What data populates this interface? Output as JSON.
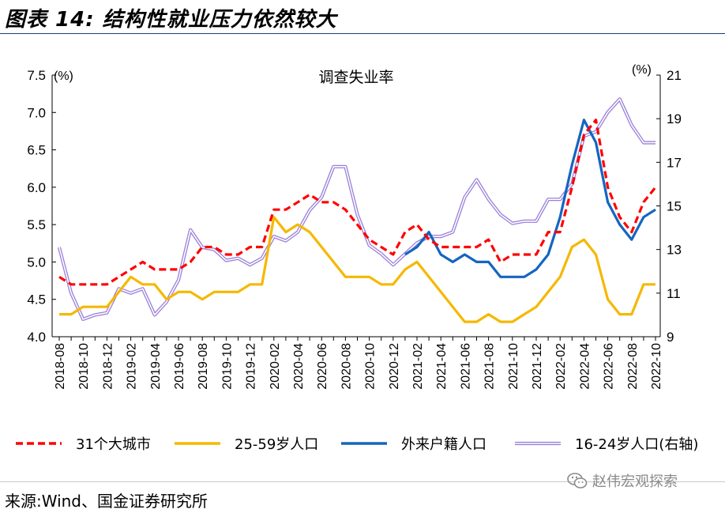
{
  "figure_title": "图表 14:  结构性就业压力依然较大",
  "source": "来源:Wind、国金证券研究所",
  "watermark": "赵伟宏观探索",
  "chart_data": {
    "type": "line",
    "title": "调查失业率",
    "left_axis_unit": "(%)",
    "right_axis_unit": "(%)",
    "ylim": [
      4.0,
      7.5
    ],
    "y_ticks": [
      "4.0",
      "4.5",
      "5.0",
      "5.5",
      "6.0",
      "6.5",
      "7.0",
      "7.5"
    ],
    "y2lim": [
      9,
      21
    ],
    "y2_ticks": [
      "9",
      "11",
      "13",
      "15",
      "17",
      "19",
      "21"
    ],
    "x": [
      "2018-08",
      "2018-09",
      "2018-10",
      "2018-11",
      "2018-12",
      "2019-01",
      "2019-02",
      "2019-03",
      "2019-04",
      "2019-05",
      "2019-06",
      "2019-07",
      "2019-08",
      "2019-09",
      "2019-10",
      "2019-11",
      "2019-12",
      "2020-01",
      "2020-02",
      "2020-03",
      "2020-04",
      "2020-05",
      "2020-06",
      "2020-07",
      "2020-08",
      "2020-09",
      "2020-10",
      "2020-11",
      "2020-12",
      "2021-01",
      "2021-02",
      "2021-03",
      "2021-04",
      "2021-05",
      "2021-06",
      "2021-07",
      "2021-08",
      "2021-09",
      "2021-10",
      "2021-11",
      "2021-12",
      "2022-01",
      "2022-02",
      "2022-03",
      "2022-04",
      "2022-05",
      "2022-06",
      "2022-07",
      "2022-08",
      "2022-09",
      "2022-10"
    ],
    "x_tick_labels": [
      "2018-08",
      "2018-10",
      "2018-12",
      "2019-02",
      "2019-04",
      "2019-06",
      "2019-08",
      "2019-10",
      "2019-12",
      "2020-02",
      "2020-04",
      "2020-06",
      "2020-08",
      "2020-10",
      "2020-12",
      "2021-02",
      "2021-04",
      "2021-06",
      "2021-08",
      "2021-10",
      "2021-12",
      "2022-02",
      "2022-04",
      "2022-06",
      "2022-08",
      "2022-10"
    ],
    "grid": false,
    "legend_position": "bottom",
    "series": [
      {
        "name": "31个大城市",
        "axis": "left",
        "color": "#ff0000",
        "dash": true,
        "values": [
          4.8,
          4.7,
          4.7,
          4.7,
          4.7,
          4.8,
          4.9,
          5.0,
          4.9,
          4.9,
          4.9,
          5.0,
          5.2,
          5.2,
          5.1,
          5.1,
          5.2,
          5.2,
          5.7,
          5.7,
          5.8,
          5.9,
          5.8,
          5.8,
          5.7,
          5.5,
          5.3,
          5.2,
          5.1,
          5.4,
          5.5,
          5.3,
          5.2,
          5.2,
          5.2,
          5.2,
          5.3,
          5.0,
          5.1,
          5.1,
          5.1,
          5.4,
          5.4,
          6.0,
          6.7,
          6.9,
          6.0,
          5.6,
          5.4,
          5.8,
          6.0
        ]
      },
      {
        "name": "25-59岁人口",
        "axis": "left",
        "color": "#f5b800",
        "dash": false,
        "values": [
          4.3,
          4.3,
          4.4,
          4.4,
          4.4,
          4.6,
          4.8,
          4.7,
          4.7,
          4.5,
          4.6,
          4.6,
          4.5,
          4.6,
          4.6,
          4.6,
          4.7,
          4.7,
          5.6,
          5.4,
          5.5,
          5.4,
          5.2,
          5.0,
          4.8,
          4.8,
          4.8,
          4.7,
          4.7,
          4.9,
          5.0,
          4.8,
          4.6,
          4.4,
          4.2,
          4.2,
          4.3,
          4.2,
          4.2,
          4.3,
          4.4,
          4.6,
          4.8,
          5.2,
          5.3,
          5.1,
          4.5,
          4.3,
          4.3,
          4.7,
          4.7
        ]
      },
      {
        "name": "外来户籍人口",
        "axis": "left",
        "color": "#1565c0",
        "dash": false,
        "values": [
          null,
          null,
          null,
          null,
          null,
          null,
          null,
          null,
          null,
          null,
          null,
          null,
          null,
          null,
          null,
          null,
          null,
          null,
          null,
          null,
          null,
          null,
          null,
          null,
          null,
          null,
          null,
          null,
          null,
          5.1,
          5.2,
          5.4,
          5.1,
          5.0,
          5.1,
          5.0,
          5.0,
          4.8,
          4.8,
          4.8,
          4.9,
          5.1,
          5.6,
          6.3,
          6.9,
          6.6,
          5.8,
          5.5,
          5.3,
          5.6,
          5.7
        ]
      },
      {
        "name": "16-24岁人口(右轴)",
        "axis": "right",
        "color": "#9b7fd8",
        "dash": false,
        "values": [
          13.1,
          11.0,
          9.8,
          10.0,
          10.1,
          11.2,
          11.0,
          11.2,
          10.0,
          10.6,
          11.6,
          13.9,
          13.1,
          13.0,
          12.5,
          12.6,
          12.3,
          12.6,
          13.6,
          13.4,
          13.8,
          14.8,
          15.4,
          16.8,
          16.8,
          14.6,
          13.2,
          12.8,
          12.3,
          12.8,
          13.3,
          13.6,
          13.6,
          13.8,
          15.4,
          16.2,
          15.3,
          14.6,
          14.2,
          14.3,
          14.3,
          15.3,
          15.3,
          16.0,
          18.2,
          18.4,
          19.3,
          19.9,
          18.7,
          17.9,
          17.9
        ]
      }
    ]
  }
}
